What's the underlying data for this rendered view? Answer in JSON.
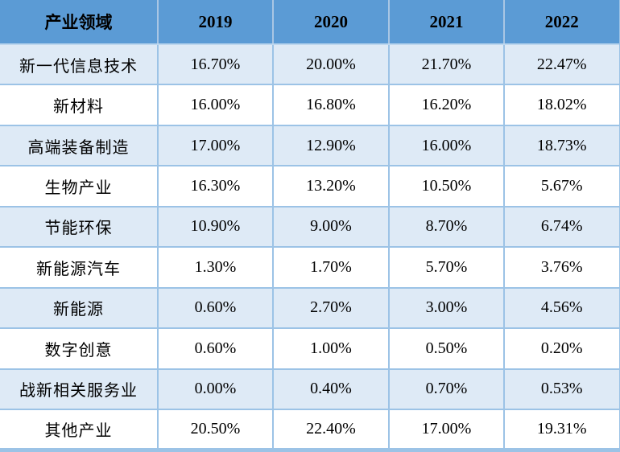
{
  "chart_data": {
    "type": "table",
    "columns": [
      "产业领域",
      "2019",
      "2020",
      "2021",
      "2022"
    ],
    "categories": [
      "新一代信息技术",
      "新材料",
      "高端装备制造",
      "生物产业",
      "节能环保",
      "新能源汽车",
      "新能源",
      "数字创意",
      "战新相关服务业",
      "其他产业"
    ],
    "rows": [
      {
        "label": "新一代信息技术",
        "values": [
          "16.70%",
          "20.00%",
          "21.70%",
          "22.47%"
        ]
      },
      {
        "label": "新材料",
        "values": [
          "16.00%",
          "16.80%",
          "16.20%",
          "18.02%"
        ]
      },
      {
        "label": "高端装备制造",
        "values": [
          "17.00%",
          "12.90%",
          "16.00%",
          "18.73%"
        ]
      },
      {
        "label": "生物产业",
        "values": [
          "16.30%",
          "13.20%",
          "10.50%",
          "5.67%"
        ]
      },
      {
        "label": "节能环保",
        "values": [
          "10.90%",
          "9.00%",
          "8.70%",
          "6.74%"
        ]
      },
      {
        "label": "新能源汽车",
        "values": [
          "1.30%",
          "1.70%",
          "5.70%",
          "3.76%"
        ]
      },
      {
        "label": "新能源",
        "values": [
          "0.60%",
          "2.70%",
          "3.00%",
          "4.56%"
        ]
      },
      {
        "label": "数字创意",
        "values": [
          "0.60%",
          "1.00%",
          "0.50%",
          "0.20%"
        ]
      },
      {
        "label": "战新相关服务业",
        "values": [
          "0.00%",
          "0.40%",
          "0.70%",
          "0.53%"
        ]
      },
      {
        "label": "其他产业",
        "values": [
          "20.50%",
          "22.40%",
          "17.00%",
          "19.31%"
        ]
      }
    ],
    "series": [
      {
        "name": "2019",
        "values": [
          16.7,
          16.0,
          17.0,
          16.3,
          10.9,
          1.3,
          0.6,
          0.6,
          0.0,
          20.5
        ]
      },
      {
        "name": "2020",
        "values": [
          20.0,
          16.8,
          12.9,
          13.2,
          9.0,
          1.7,
          2.7,
          1.0,
          0.4,
          22.4
        ]
      },
      {
        "name": "2021",
        "values": [
          21.7,
          16.2,
          16.0,
          10.5,
          8.7,
          5.7,
          3.0,
          0.5,
          0.7,
          17.0
        ]
      },
      {
        "name": "2022",
        "values": [
          22.47,
          18.02,
          18.73,
          5.67,
          6.74,
          3.76,
          4.56,
          0.2,
          0.53,
          19.31
        ]
      }
    ],
    "unit": "%",
    "legend_position": "none",
    "grid": true
  },
  "colors": {
    "header_bg": "#5b9bd5",
    "row_alt_bg": "#deeaf6",
    "row_bg": "#ffffff",
    "border": "#9cc3e6",
    "header_divider": "#bdd7ee",
    "text": "#000000"
  }
}
